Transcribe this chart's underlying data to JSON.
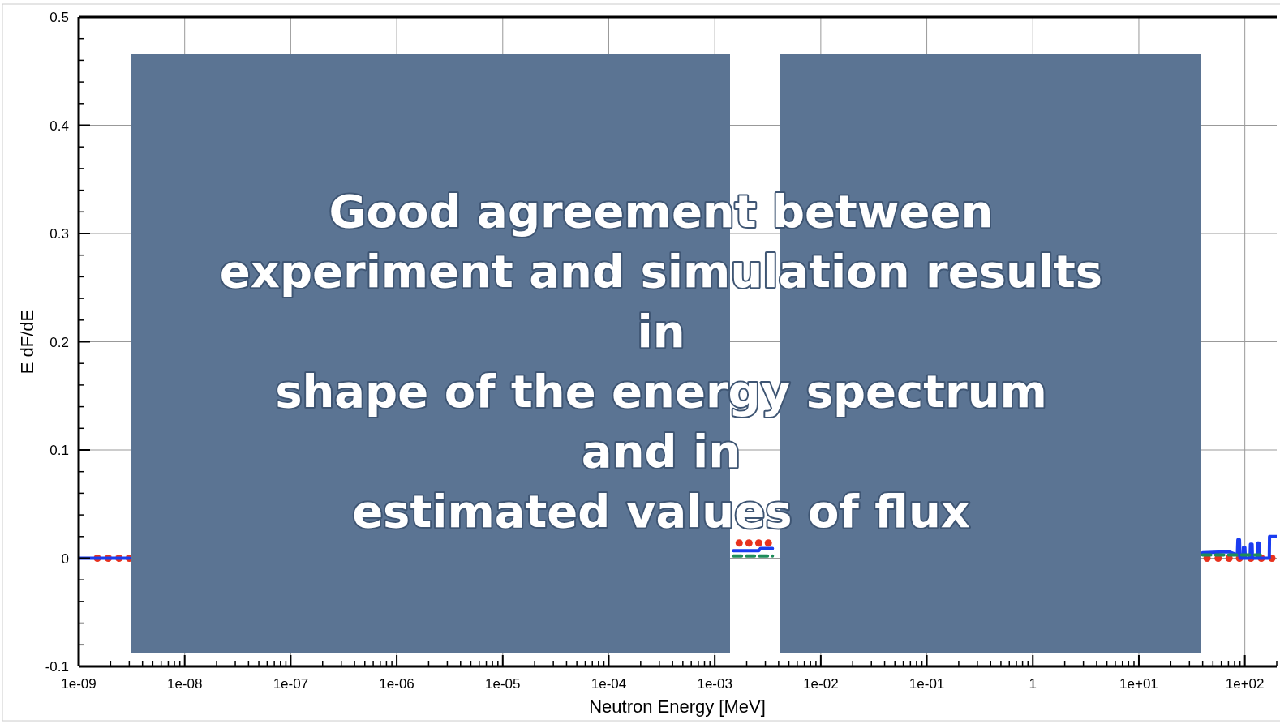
{
  "chart_data": {
    "type": "line",
    "xlabel": "Neutron Energy [MeV]",
    "ylabel": "E dF/dE",
    "log": "x",
    "xlim": [
      1e-09,
      200
    ],
    "ylim": [
      -0.1,
      0.5
    ],
    "xticks": [
      {
        "value": 1e-09,
        "label": "1e-09"
      },
      {
        "value": 1e-08,
        "label": "1e-08"
      },
      {
        "value": 1e-07,
        "label": "1e-07"
      },
      {
        "value": 1e-06,
        "label": "1e-06"
      },
      {
        "value": 1e-05,
        "label": "1e-05"
      },
      {
        "value": 0.0001,
        "label": "1e-04"
      },
      {
        "value": 0.001,
        "label": "1e-03"
      },
      {
        "value": 0.01,
        "label": "1e-02"
      },
      {
        "value": 0.1,
        "label": "1e-01"
      },
      1,
      {
        "value": 10,
        "label": "1e+01"
      },
      {
        "value": 100,
        "label": "1e+02"
      }
    ],
    "yticks": [
      -0.1,
      0,
      0.1,
      0.2,
      0.3,
      0.4,
      0.5
    ],
    "grid": true,
    "series": [
      {
        "type": "scatter",
        "color": "#e8321e",
        "marker": "circle",
        "x": [
          1.5e-09,
          1.9e-09,
          2.4e-09,
          3e-09,
          0.0017,
          0.0021,
          0.0026,
          0.0032,
          44,
          56,
          71,
          89,
          114,
          143,
          180
        ],
        "values": [
          0,
          0,
          0,
          0,
          0.014,
          0.014,
          0.014,
          0.014,
          0,
          0,
          0,
          0,
          0,
          0,
          0
        ]
      },
      {
        "type": "line",
        "color": "#1a3cf0",
        "x": [
          1e-09,
          3e-09,
          1e-06,
          0.0015,
          0.0026,
          0.0027,
          0.0035,
          1,
          40,
          70,
          85,
          86,
          89,
          90,
          96,
          97,
          100,
          101,
          112,
          113,
          117,
          118,
          131,
          132,
          136,
          137,
          170,
          171,
          200
        ],
        "values": [
          0,
          0,
          null,
          0.007,
          0.007,
          0.009,
          0.009,
          null,
          0.005,
          0.006,
          0.003,
          0.017,
          0.017,
          0,
          0,
          0.01,
          0.01,
          0,
          0,
          0.013,
          0.013,
          0,
          0,
          0.014,
          0.014,
          0,
          0,
          0.02,
          0.02
        ]
      },
      {
        "type": "line",
        "color": "#1e8c5a",
        "line_style": "dashed",
        "x": [
          0.0015,
          0.0035,
          1,
          40,
          140
        ],
        "values": [
          0.002,
          0.002,
          null,
          0.003,
          0.003
        ]
      }
    ],
    "annotations": [
      "Good agreement between",
      "experiment and simulation results",
      "in",
      "shape of the energy spectrum",
      "and in",
      "estimated values of flux"
    ]
  }
}
